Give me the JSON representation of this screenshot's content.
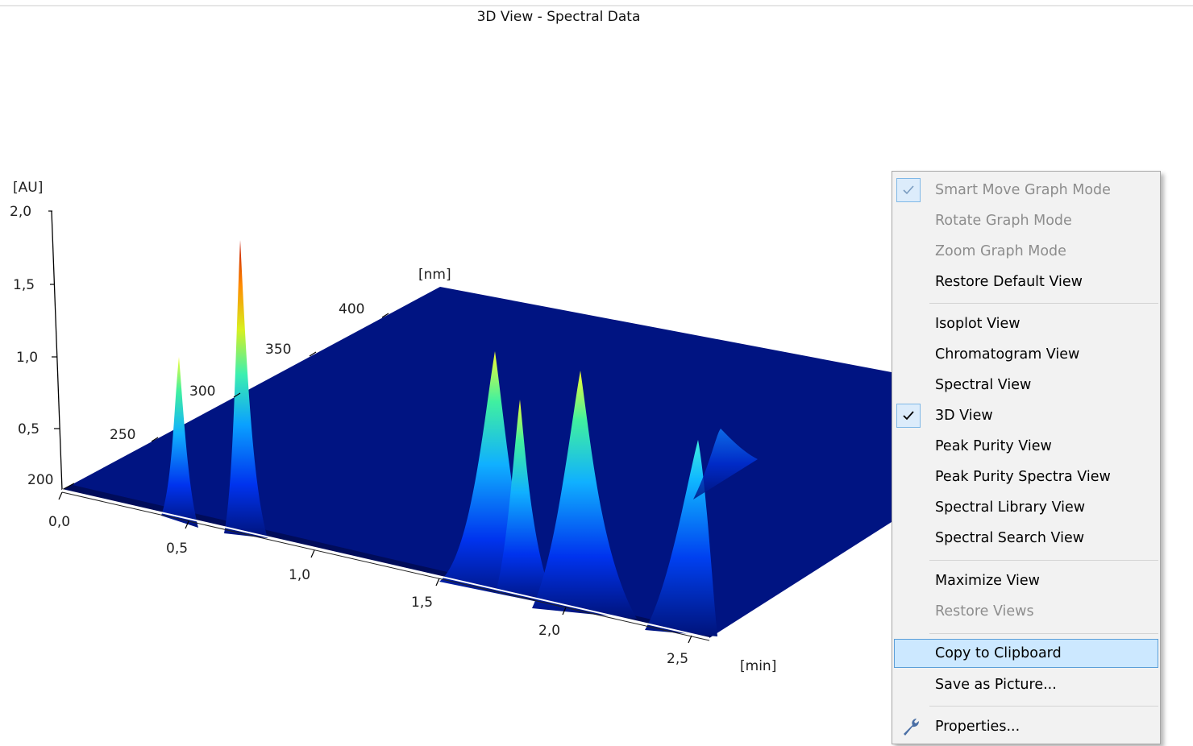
{
  "window": {
    "title": "3D View - Spectral Data"
  },
  "chart_data": {
    "type": "3d-surface",
    "title": "3D View - Spectral Data",
    "z_axis": {
      "label": "[AU]",
      "ticks": [
        "2,0",
        "1,5",
        "1,0",
        "0,5"
      ]
    },
    "wavelength_axis": {
      "label": "[nm]",
      "ticks": [
        "200",
        "250",
        "300",
        "350",
        "400"
      ]
    },
    "time_axis": {
      "label": "[min]",
      "ticks": [
        "0,0",
        "0,5",
        "1,0",
        "1,5",
        "2,0",
        "2,5"
      ]
    },
    "peaks": [
      {
        "time_min": 0.45,
        "height_au": 0.95
      },
      {
        "time_min": 0.63,
        "height_au": 1.75
      },
      {
        "time_min": 1.62,
        "height_au": 0.9
      },
      {
        "time_min": 1.72,
        "height_au": 0.7
      },
      {
        "time_min": 2.0,
        "height_au": 0.8
      },
      {
        "time_min": 2.55,
        "height_au": 0.45
      }
    ],
    "colors": {
      "base": "#00137a",
      "low": "#0040ff",
      "mid": "#20ffd0",
      "high": "#ffff30",
      "peak": "#cc1500"
    }
  },
  "context_menu": {
    "items": [
      {
        "label": "Smart Move Graph Mode",
        "disabled": true,
        "checked": true,
        "highlight": false
      },
      {
        "label": "Rotate Graph Mode",
        "disabled": true,
        "checked": false,
        "highlight": false
      },
      {
        "label": "Zoom Graph Mode",
        "disabled": true,
        "checked": false,
        "highlight": false
      },
      {
        "label": "Restore Default View",
        "disabled": false,
        "checked": false,
        "highlight": false
      },
      {
        "label": "Isoplot View",
        "disabled": false,
        "checked": false,
        "highlight": false
      },
      {
        "label": "Chromatogram View",
        "disabled": false,
        "checked": false,
        "highlight": false
      },
      {
        "label": "Spectral View",
        "disabled": false,
        "checked": false,
        "highlight": false
      },
      {
        "label": "3D View",
        "disabled": false,
        "checked": true,
        "highlight": false
      },
      {
        "label": "Peak Purity View",
        "disabled": false,
        "checked": false,
        "highlight": false
      },
      {
        "label": "Peak Purity Spectra View",
        "disabled": false,
        "checked": false,
        "highlight": false
      },
      {
        "label": "Spectral Library View",
        "disabled": false,
        "checked": false,
        "highlight": false
      },
      {
        "label": "Spectral Search View",
        "disabled": false,
        "checked": false,
        "highlight": false
      },
      {
        "label": "Maximize View",
        "disabled": false,
        "checked": false,
        "highlight": false
      },
      {
        "label": "Restore Views",
        "disabled": true,
        "checked": false,
        "highlight": false
      },
      {
        "label": "Copy to Clipboard",
        "disabled": false,
        "checked": false,
        "highlight": true
      },
      {
        "label": "Save as Picture...",
        "disabled": false,
        "checked": false,
        "highlight": false
      },
      {
        "label": "Properties...",
        "disabled": false,
        "checked": false,
        "highlight": false,
        "icon": "wrench-icon"
      }
    ]
  }
}
